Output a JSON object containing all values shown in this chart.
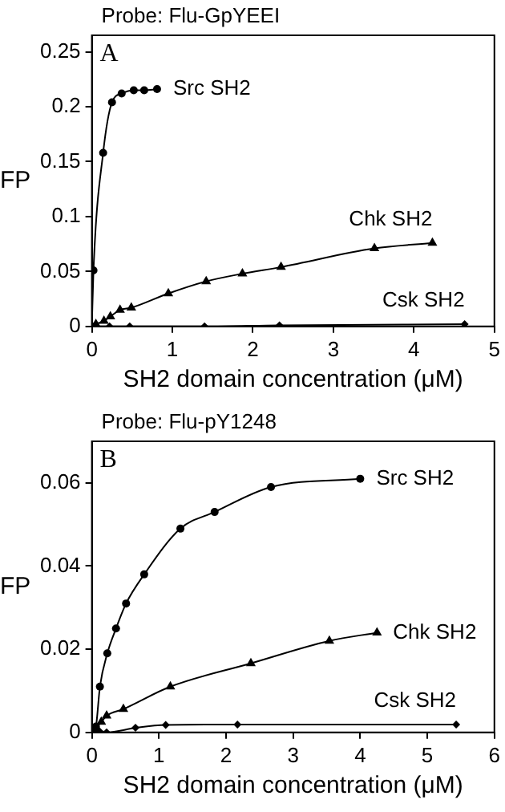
{
  "chart_data": [
    {
      "type": "line",
      "title": "Probe: Flu-GpYEEI",
      "xlabel": "SH2 domain concentration (μM)",
      "ylabel": "FP",
      "annotations": [
        "A"
      ],
      "xlim": [
        0,
        5
      ],
      "xticks": [
        0,
        1,
        2,
        3,
        4,
        5
      ],
      "ylim": [
        0,
        0.265
      ],
      "yticks": [
        0,
        0.05,
        {
          "value": 0.1,
          "label": "0.1"
        },
        0.15,
        {
          "value": 0.2,
          "label": "0.2"
        },
        0.25
      ],
      "grid": false,
      "legend": false,
      "series": [
        {
          "name": "Src SH2",
          "color": "#000000",
          "marker": "circle",
          "x": [
            0,
            0.02,
            0.14,
            0.25,
            0.37,
            0.52,
            0.65,
            0.81
          ],
          "values": [
            0,
            0.051,
            0.158,
            0.204,
            0.212,
            0.215,
            0.215,
            0.216
          ]
        },
        {
          "name": "Chk SH2",
          "color": "#000000",
          "marker": "triangle",
          "x": [
            0,
            0.05,
            0.15,
            0.23,
            0.35,
            0.49,
            0.95,
            1.42,
            1.87,
            2.35,
            3.51,
            4.23
          ],
          "values": [
            0,
            0.002,
            0.005,
            0.009,
            0.015,
            0.017,
            0.03,
            0.041,
            0.048,
            0.054,
            0.071,
            0.076
          ]
        },
        {
          "name": "Csk SH2",
          "color": "#000000",
          "marker": "diamond",
          "x": [
            0,
            0.22,
            0.47,
            1.4,
            2.33,
            4.63
          ],
          "values": [
            0,
            0,
            0,
            0,
            0.001,
            0.002
          ]
        }
      ]
    },
    {
      "type": "line",
      "title": "Probe: Flu-pY1248",
      "xlabel": "SH2 domain concentration (μM)",
      "ylabel": "FP",
      "annotations": [
        "B"
      ],
      "xlim": [
        0,
        6
      ],
      "xticks": [
        0,
        1,
        2,
        3,
        4,
        5,
        6
      ],
      "ylim": [
        0,
        0.07
      ],
      "yticks": [
        0,
        0.02,
        0.04,
        0.06
      ],
      "grid": false,
      "legend": false,
      "series": [
        {
          "name": "Src SH2",
          "color": "#000000",
          "marker": "circle",
          "x": [
            0,
            0.06,
            0.12,
            0.23,
            0.36,
            0.51,
            0.78,
            1.32,
            1.83,
            2.67,
            4.0
          ],
          "values": [
            0,
            0.0014,
            0.011,
            0.019,
            0.025,
            0.031,
            0.038,
            0.049,
            0.053,
            0.059,
            0.061
          ]
        },
        {
          "name": "Chk SH2",
          "color": "#000000",
          "marker": "triangle",
          "x": [
            0,
            0.14,
            0.22,
            0.47,
            1.17,
            2.37,
            3.54,
            4.25
          ],
          "values": [
            0,
            0.0025,
            0.004,
            0.0056,
            0.011,
            0.0166,
            0.022,
            0.024
          ]
        },
        {
          "name": "Csk SH2",
          "color": "#000000",
          "marker": "diamond",
          "x": [
            0,
            0.1,
            0.22,
            0.65,
            1.1,
            2.17,
            5.43
          ],
          "values": [
            0,
            0.0005,
            0,
            0.0011,
            0.0018,
            0.0019,
            0.0019
          ]
        }
      ]
    }
  ]
}
